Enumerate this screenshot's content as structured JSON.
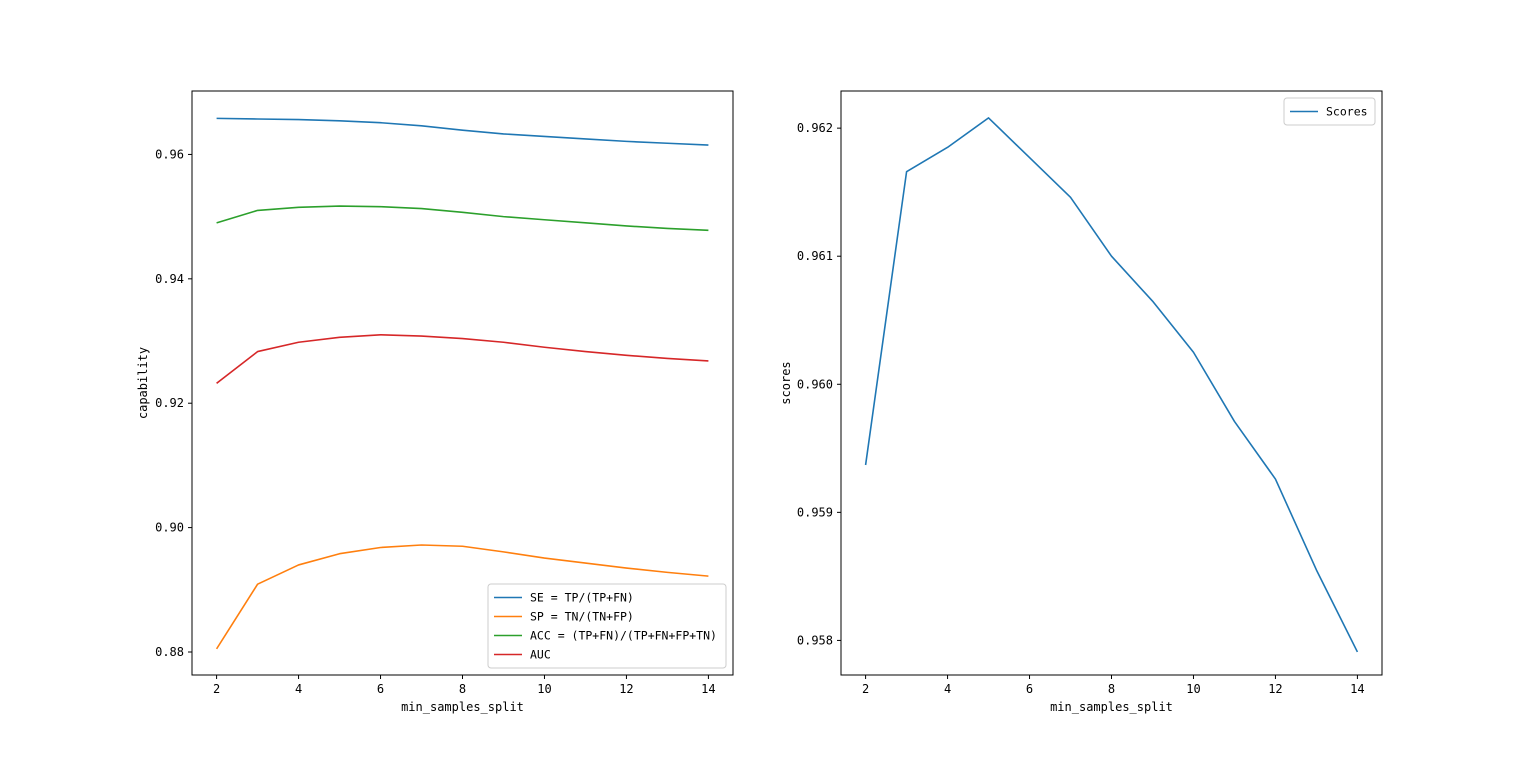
{
  "chart_data": [
    {
      "type": "line",
      "xlabel": "min_samples_split",
      "ylabel": "capability",
      "xlim": [
        1.4,
        14.6
      ],
      "ylim": [
        0.8763,
        0.9702
      ],
      "x_ticks": [
        2,
        4,
        6,
        8,
        10,
        12,
        14
      ],
      "y_ticks": [
        0.88,
        0.9,
        0.92,
        0.94,
        0.96
      ],
      "y_tick_labels": [
        "0.88",
        "0.90",
        "0.92",
        "0.94",
        "0.96"
      ],
      "x": [
        2,
        3,
        4,
        5,
        6,
        7,
        8,
        9,
        10,
        11,
        12,
        13,
        14
      ],
      "legend_position": "lower right",
      "series": [
        {
          "name": "SE = TP/(TP+FN)",
          "color": "#1f77b4",
          "values": [
            0.9658,
            0.9657,
            0.9656,
            0.9654,
            0.9651,
            0.9646,
            0.9639,
            0.9633,
            0.9629,
            0.9625,
            0.9621,
            0.9618,
            0.9615
          ]
        },
        {
          "name": "SP = TN/(TN+FP)",
          "color": "#ff7f0e",
          "values": [
            0.8805,
            0.8909,
            0.894,
            0.8958,
            0.8968,
            0.8972,
            0.897,
            0.8961,
            0.8951,
            0.8943,
            0.8935,
            0.8928,
            0.8922
          ]
        },
        {
          "name": "ACC = (TP+FN)/(TP+FN+FP+TN)",
          "color": "#2ca02c",
          "values": [
            0.949,
            0.951,
            0.9515,
            0.9517,
            0.9516,
            0.9513,
            0.9507,
            0.95,
            0.9495,
            0.949,
            0.9485,
            0.9481,
            0.9478
          ]
        },
        {
          "name": "AUC",
          "color": "#d62728",
          "values": [
            0.9232,
            0.9283,
            0.9298,
            0.9306,
            0.931,
            0.9308,
            0.9304,
            0.9298,
            0.929,
            0.9283,
            0.9277,
            0.9272,
            0.9268
          ]
        }
      ]
    },
    {
      "type": "line",
      "xlabel": "min_samples_split",
      "ylabel": "scores",
      "xlim": [
        1.4,
        14.6
      ],
      "ylim": [
        0.95773,
        0.96229
      ],
      "x_ticks": [
        2,
        4,
        6,
        8,
        10,
        12,
        14
      ],
      "y_ticks": [
        0.958,
        0.959,
        0.96,
        0.961,
        0.962
      ],
      "y_tick_labels": [
        "0.958",
        "0.959",
        "0.960",
        "0.961",
        "0.962"
      ],
      "x": [
        2,
        3,
        4,
        5,
        6,
        7,
        8,
        9,
        10,
        11,
        12,
        13,
        14
      ],
      "legend_position": "upper right",
      "series": [
        {
          "name": "Scores",
          "color": "#1f77b4",
          "values": [
            0.95937,
            0.96166,
            0.96185,
            0.96208,
            0.96177,
            0.96146,
            0.961,
            0.96065,
            0.96025,
            0.95971,
            0.95926,
            0.95855,
            0.95791
          ]
        }
      ]
    }
  ]
}
